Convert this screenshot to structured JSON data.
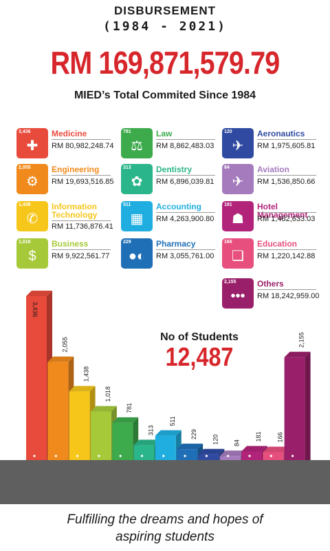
{
  "header": {
    "title_line1": "DISBURSEMENT",
    "title_line2": "(1984 - 2021)",
    "total_amount": "RM 169,871,579.79",
    "subtitle": "MIED’s Total Commited Since 1984"
  },
  "categories": [
    {
      "name": "Medicine",
      "count": "3,436",
      "amount": "RM 80,982,248.74",
      "color": "#e84a3b",
      "icon": "medicine-icon",
      "glyph": "✚"
    },
    {
      "name": "Engineering",
      "count": "2,055",
      "amount": "RM 19,693,516.85",
      "color": "#f08a1c",
      "icon": "gear-icon",
      "glyph": "⚙"
    },
    {
      "name": "Information Technology",
      "count": "1,438",
      "amount": "RM 11,736,876.41",
      "color": "#f6c61a",
      "icon": "it-icon",
      "glyph": "✆"
    },
    {
      "name": "Business",
      "count": "1,018",
      "amount": "RM 9,922,561.77",
      "color": "#a6c93a",
      "icon": "business-icon",
      "glyph": "$"
    },
    {
      "name": "Law",
      "count": "781",
      "amount": "RM 8,862,483.03",
      "color": "#3daa4b",
      "icon": "law-scales-icon",
      "glyph": "⚖"
    },
    {
      "name": "Dentistry",
      "count": "313",
      "amount": "RM 6,896,039.81",
      "color": "#2bb58a",
      "icon": "dental-chair-icon",
      "glyph": "✿"
    },
    {
      "name": "Accounting",
      "count": "511",
      "amount": "RM 4,263,900.80",
      "color": "#20aee0",
      "icon": "calculator-icon",
      "glyph": "▦"
    },
    {
      "name": "Pharmacy",
      "count": "229",
      "amount": "RM 3,055,761.00",
      "color": "#1f6fb7",
      "icon": "pills-icon",
      "glyph": "●◐"
    },
    {
      "name": "Aeronautics",
      "count": "120",
      "amount": "RM 1,975,605.81",
      "color": "#2f4aa0",
      "icon": "jet-icon",
      "glyph": "✈"
    },
    {
      "name": "Aviation",
      "count": "84",
      "amount": "RM 1,536,850.66",
      "color": "#a57bbd",
      "icon": "airplane-icon",
      "glyph": "✈"
    },
    {
      "name": "Hotel Management",
      "count": "181",
      "amount": "RM 1,482,633.03",
      "color": "#b2237a",
      "icon": "waiter-icon",
      "glyph": "☗"
    },
    {
      "name": "Education",
      "count": "166",
      "amount": "RM 1,220,142.88",
      "color": "#e74f7e",
      "icon": "book-icon",
      "glyph": "❏"
    },
    {
      "name": "Others",
      "count": "2,155",
      "amount": "RM 18,242,959.00",
      "color": "#9a1f6a",
      "icon": "more-icon",
      "glyph": "•••"
    }
  ],
  "students": {
    "label": "No of Students",
    "total": "12,487"
  },
  "chart_data": {
    "type": "bar",
    "categories": [
      "Medicine",
      "Engineering",
      "Information Technology",
      "Business",
      "Law",
      "Dentistry",
      "Accounting",
      "Pharmacy",
      "Aeronautics",
      "Aviation",
      "Hotel Management",
      "Education",
      "Others"
    ],
    "values": [
      3436,
      2055,
      1438,
      1018,
      781,
      313,
      511,
      229,
      120,
      84,
      181,
      166,
      2155
    ],
    "value_labels": [
      "3,436",
      "2,055",
      "1,438",
      "1,018",
      "781",
      "313",
      "511",
      "229",
      "120",
      "84",
      "181",
      "166",
      "2,155"
    ],
    "colors": [
      "#e84a3b",
      "#f08a1c",
      "#f6c61a",
      "#a6c93a",
      "#3daa4b",
      "#2bb58a",
      "#20aee0",
      "#1f6fb7",
      "#2f4aa0",
      "#a57bbd",
      "#b2237a",
      "#e74f7e",
      "#9a1f6a"
    ],
    "ylim": [
      0,
      3436
    ],
    "grid": false,
    "title": "",
    "xlabel": "",
    "ylabel": ""
  },
  "footer": {
    "line1": "Fulfilling the dreams and hopes of",
    "line2": "aspiring students"
  }
}
